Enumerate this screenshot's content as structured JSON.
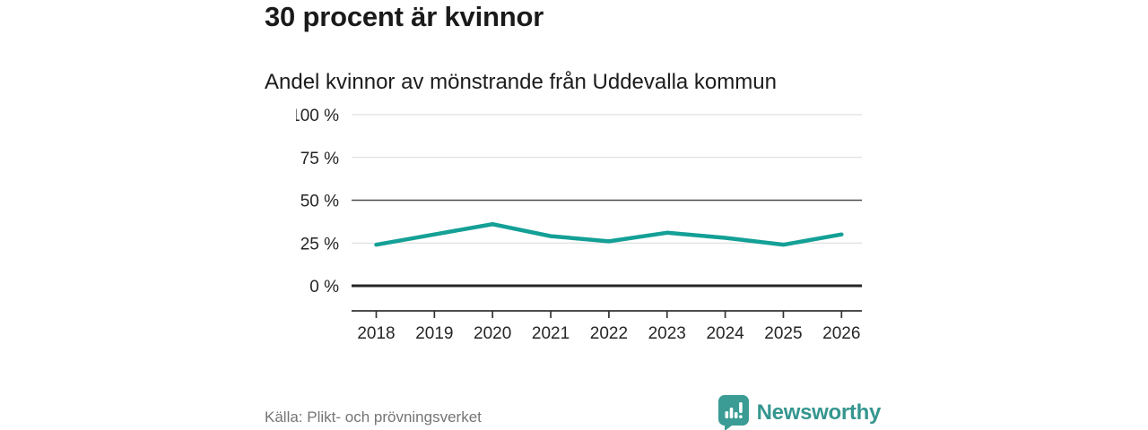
{
  "header": {
    "title": "30 procent är kvinnor",
    "subtitle": "Andel kvinnor av mönstrande från Uddevalla kommun"
  },
  "chart_data": {
    "type": "line",
    "title": "30 procent är kvinnor",
    "subtitle": "Andel kvinnor av mönstrande från Uddevalla kommun",
    "categories": [
      "2018",
      "2019",
      "2020",
      "2021",
      "2022",
      "2023",
      "2024",
      "2025",
      "2026"
    ],
    "series": [
      {
        "name": "Andel kvinnor av mönstrande",
        "values": [
          24,
          30,
          36,
          29,
          26,
          31,
          28,
          24,
          30
        ]
      }
    ],
    "ylim": [
      0,
      100
    ],
    "yticks": [
      0,
      25,
      50,
      75,
      100
    ],
    "ytick_labels": [
      "0 %",
      "25 %",
      "50 %",
      "75 %",
      "100 %"
    ],
    "xlabel": "",
    "ylabel": "",
    "grid": "horizontal",
    "legend": "none",
    "line_color": "#14a096"
  },
  "footer": {
    "source": "Källa: Plikt- och prövningsverket",
    "brand": "Newsworthy"
  },
  "icons": {
    "logo": "newsworthy-speech-bubble-bar-chart-icon"
  },
  "colors": {
    "accent_teal": "#14a096",
    "logo_teal": "#3a9c94",
    "logo_text_teal": "#35968f",
    "baseline_dark": "#262626",
    "grid_mid": "#4d4d4d",
    "grid_light": "#d9d9d9",
    "axis_line": "#333333",
    "axis_text": "#262626",
    "text_dark": "#1a1a1a",
    "text_muted": "#757575"
  }
}
